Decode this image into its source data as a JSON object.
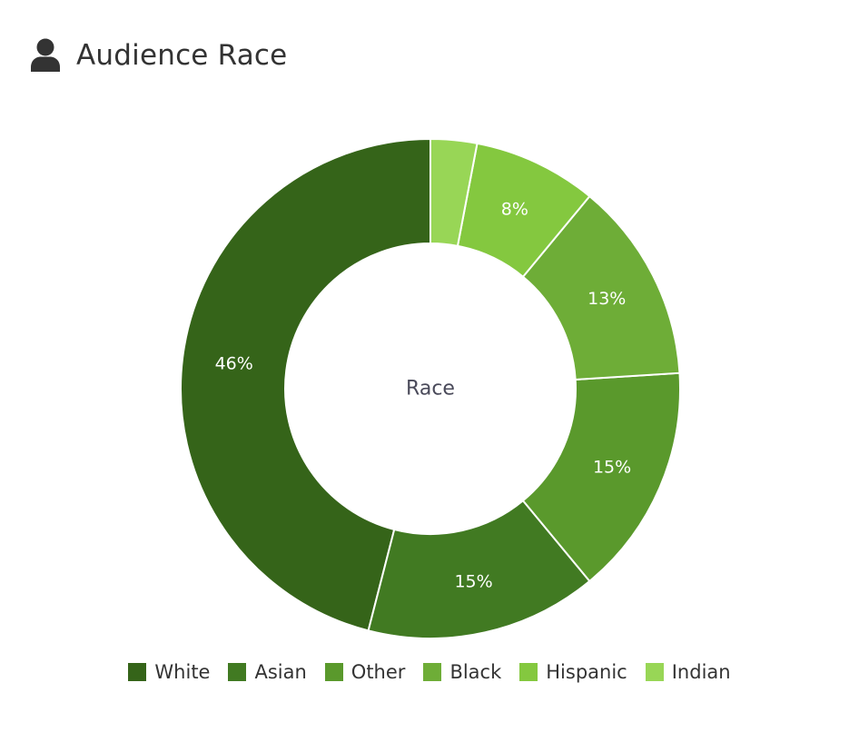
{
  "header": {
    "title": "Audience Race",
    "icon": "user-icon"
  },
  "chart_data": {
    "type": "pie",
    "variant": "donut",
    "center_label": "Race",
    "categories": [
      "White",
      "Asian",
      "Other",
      "Black",
      "Hispanic",
      "Indian"
    ],
    "values": [
      46,
      15,
      15,
      13,
      8,
      3
    ],
    "data_labels": [
      "46%",
      "15%",
      "15%",
      "13%",
      "8%",
      ""
    ],
    "colors": [
      "#356419",
      "#417a22",
      "#5a992c",
      "#6ead37",
      "#84c83f",
      "#98d656"
    ],
    "legend_position": "bottom",
    "start": "top",
    "direction": "counter-clockwise"
  }
}
